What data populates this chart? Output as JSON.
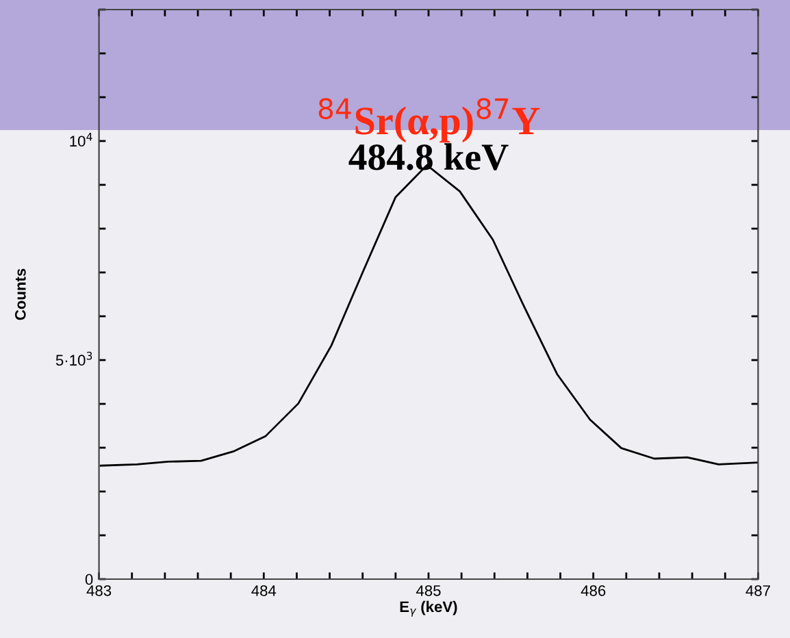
{
  "chart_data": {
    "type": "line",
    "title": "$^{84}$Sr(α,p)$^{87}$Y",
    "annotations": [
      "484.8 keV"
    ],
    "xlabel": "E$_{γ}$ (keV)",
    "ylabel": "Counts",
    "x": [
      483.01,
      483.23,
      483.42,
      483.62,
      483.82,
      484.01,
      484.21,
      484.41,
      484.6,
      484.8,
      484.99,
      485.19,
      485.39,
      485.58,
      485.78,
      485.98,
      486.17,
      486.37,
      486.57,
      486.76,
      487.0
    ],
    "series": [
      {
        "color": "#000000",
        "values": [
          2590,
          2620,
          2680,
          2700,
          2920,
          3260,
          4010,
          5330,
          7000,
          8720,
          9450,
          8850,
          7750,
          6220,
          4680,
          3640,
          2990,
          2750,
          2780,
          2620,
          2660
        ]
      }
    ],
    "xlim": [
      483,
      487
    ],
    "ylim": [
      0,
      13000
    ],
    "xticks": [
      483,
      {
        "value": 483.2,
        "label": null
      },
      {
        "value": 483.4,
        "label": null
      },
      {
        "value": 483.6,
        "label": null
      },
      {
        "value": 483.8,
        "label": null
      },
      484,
      {
        "value": 484.2,
        "label": null
      },
      {
        "value": 484.4,
        "label": null
      },
      {
        "value": 484.6,
        "label": null
      },
      {
        "value": 484.8,
        "label": null
      },
      485,
      {
        "value": 485.2,
        "label": null
      },
      {
        "value": 485.4,
        "label": null
      },
      {
        "value": 485.6,
        "label": null
      },
      {
        "value": 485.8,
        "label": null
      },
      486,
      {
        "value": 486.2,
        "label": null
      },
      {
        "value": 486.4,
        "label": null
      },
      {
        "value": 486.6,
        "label": null
      },
      {
        "value": 486.8,
        "label": null
      },
      487
    ],
    "yticks": [
      0,
      {
        "value": 1000,
        "label": null
      },
      {
        "value": 2000,
        "label": null
      },
      {
        "value": 3000,
        "label": null
      },
      {
        "value": 4000,
        "label": null
      },
      {
        "value": 5000,
        "label": "5·10$^{3}$"
      },
      {
        "value": 6000,
        "label": null
      },
      {
        "value": 7000,
        "label": null
      },
      {
        "value": 8000,
        "label": null
      },
      {
        "value": 9000,
        "label": null
      },
      {
        "value": 10000,
        "label": "10$^{4}$"
      },
      {
        "value": 11000,
        "label": null
      },
      {
        "value": 12000,
        "label": null
      },
      {
        "value": 13000,
        "label": null
      }
    ],
    "grid": false,
    "marker": "none",
    "line_style": "solid"
  }
}
